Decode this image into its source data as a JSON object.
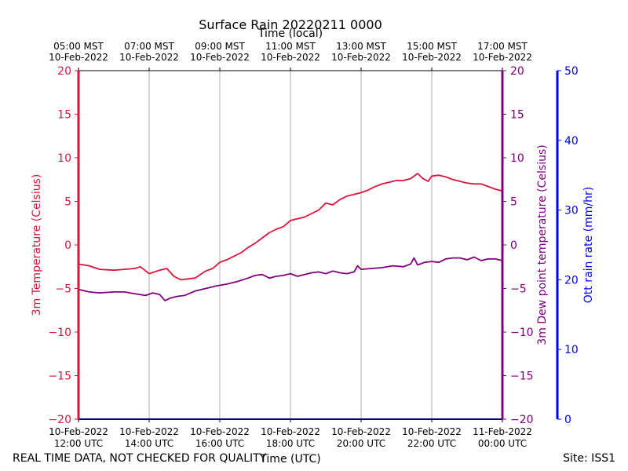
{
  "chart_data": {
    "type": "line",
    "title": "Surface Rain 20220211 0000",
    "top_xlabel": "Time (local)",
    "xlabel": "Time (UTC)",
    "ylabel_left": "3m Temperature (Celsius)",
    "ylabel_right1": "3m Dew point temperature (Celsius)",
    "ylabel_right2": "Ott rain rate (mm/hr)",
    "ylim_left": [
      -20,
      20
    ],
    "ylim_right1": [
      -20,
      20
    ],
    "ylim_right2": [
      0,
      50
    ],
    "xlim_hours_utc": [
      12,
      24
    ],
    "grid": "vertical",
    "y_ticks_left": [
      -20,
      -15,
      -10,
      -5,
      0,
      5,
      10,
      15,
      20
    ],
    "y_ticks_right1": [
      -20,
      -15,
      -10,
      -5,
      0,
      5,
      10,
      15,
      20
    ],
    "y_ticks_right2": [
      0,
      10,
      20,
      30,
      40,
      50
    ],
    "x_ticks_bottom": [
      {
        "line1": "10-Feb-2022",
        "line2": "12:00 UTC"
      },
      {
        "line1": "10-Feb-2022",
        "line2": "14:00 UTC"
      },
      {
        "line1": "10-Feb-2022",
        "line2": "16:00 UTC"
      },
      {
        "line1": "10-Feb-2022",
        "line2": "18:00 UTC"
      },
      {
        "line1": "10-Feb-2022",
        "line2": "20:00 UTC"
      },
      {
        "line1": "10-Feb-2022",
        "line2": "22:00 UTC"
      },
      {
        "line1": "11-Feb-2022",
        "line2": "00:00 UTC"
      }
    ],
    "x_ticks_top": [
      {
        "line1": "05:00 MST",
        "line2": "10-Feb-2022"
      },
      {
        "line1": "07:00 MST",
        "line2": "10-Feb-2022"
      },
      {
        "line1": "09:00 MST",
        "line2": "10-Feb-2022"
      },
      {
        "line1": "11:00 MST",
        "line2": "10-Feb-2022"
      },
      {
        "line1": "13:00 MST",
        "line2": "10-Feb-2022"
      },
      {
        "line1": "15:00 MST",
        "line2": "10-Feb-2022"
      },
      {
        "line1": "17:00 MST",
        "line2": "10-Feb-2022"
      }
    ],
    "series": [
      {
        "name": "3m Temperature (Celsius)",
        "color": "#dc143c",
        "axis": "left",
        "x_hours_utc": [
          12.0,
          12.3,
          12.6,
          13.0,
          13.3,
          13.6,
          13.75,
          14.0,
          14.3,
          14.5,
          14.7,
          14.9,
          15.1,
          15.3,
          15.6,
          15.8,
          16.0,
          16.2,
          16.4,
          16.6,
          16.8,
          17.0,
          17.2,
          17.4,
          17.6,
          17.8,
          18.0,
          18.2,
          18.4,
          18.6,
          18.8,
          19.0,
          19.2,
          19.4,
          19.6,
          19.8,
          20.0,
          20.2,
          20.4,
          20.6,
          20.8,
          21.0,
          21.2,
          21.4,
          21.6,
          21.75,
          21.9,
          22.0,
          22.2,
          22.4,
          22.6,
          22.8,
          23.0,
          23.2,
          23.4,
          23.6,
          23.8,
          24.0
        ],
        "values": [
          -2.2,
          -2.4,
          -2.8,
          -2.9,
          -2.8,
          -2.7,
          -2.5,
          -3.3,
          -2.9,
          -2.7,
          -3.6,
          -4.0,
          -3.9,
          -3.8,
          -3.0,
          -2.7,
          -2.0,
          -1.7,
          -1.3,
          -0.9,
          -0.3,
          0.2,
          0.8,
          1.4,
          1.8,
          2.1,
          2.8,
          3.0,
          3.2,
          3.6,
          4.0,
          4.8,
          4.6,
          5.2,
          5.6,
          5.8,
          6.0,
          6.3,
          6.7,
          7.0,
          7.2,
          7.4,
          7.4,
          7.6,
          8.2,
          7.6,
          7.3,
          7.9,
          8.0,
          7.8,
          7.5,
          7.3,
          7.1,
          7.0,
          7.0,
          6.7,
          6.4,
          6.2
        ]
      },
      {
        "name": "3m Dew point temperature (Celsius)",
        "color": "#800080",
        "axis": "right1",
        "x_hours_utc": [
          12.0,
          12.3,
          12.6,
          13.0,
          13.3,
          13.6,
          13.9,
          14.1,
          14.3,
          14.45,
          14.6,
          14.8,
          15.0,
          15.3,
          15.6,
          15.9,
          16.2,
          16.5,
          16.8,
          17.0,
          17.2,
          17.4,
          17.6,
          17.8,
          18.0,
          18.2,
          18.4,
          18.6,
          18.8,
          19.0,
          19.2,
          19.4,
          19.6,
          19.8,
          19.9,
          20.0,
          20.3,
          20.6,
          20.9,
          21.2,
          21.4,
          21.5,
          21.6,
          21.8,
          22.0,
          22.2,
          22.4,
          22.6,
          22.8,
          23.0,
          23.2,
          23.4,
          23.6,
          23.8,
          24.0
        ],
        "values": [
          -5.1,
          -5.4,
          -5.5,
          -5.4,
          -5.4,
          -5.6,
          -5.8,
          -5.5,
          -5.7,
          -6.4,
          -6.1,
          -5.9,
          -5.8,
          -5.3,
          -5.0,
          -4.7,
          -4.5,
          -4.2,
          -3.8,
          -3.5,
          -3.4,
          -3.8,
          -3.6,
          -3.5,
          -3.3,
          -3.6,
          -3.4,
          -3.2,
          -3.1,
          -3.3,
          -3.0,
          -3.2,
          -3.3,
          -3.1,
          -2.4,
          -2.8,
          -2.7,
          -2.6,
          -2.4,
          -2.5,
          -2.2,
          -1.5,
          -2.3,
          -2.0,
          -1.9,
          -2.0,
          -1.6,
          -1.5,
          -1.5,
          -1.7,
          -1.4,
          -1.8,
          -1.6,
          -1.6,
          -1.8
        ]
      },
      {
        "name": "Ott rain rate (mm/hr)",
        "color": "#0000ff",
        "axis": "right2",
        "x_hours_utc": [
          12.0,
          24.0
        ],
        "values": [
          0,
          0
        ]
      }
    ],
    "footer_left": "REAL TIME DATA, NOT CHECKED FOR QUALITY",
    "footer_right": "Site: ISS1"
  }
}
